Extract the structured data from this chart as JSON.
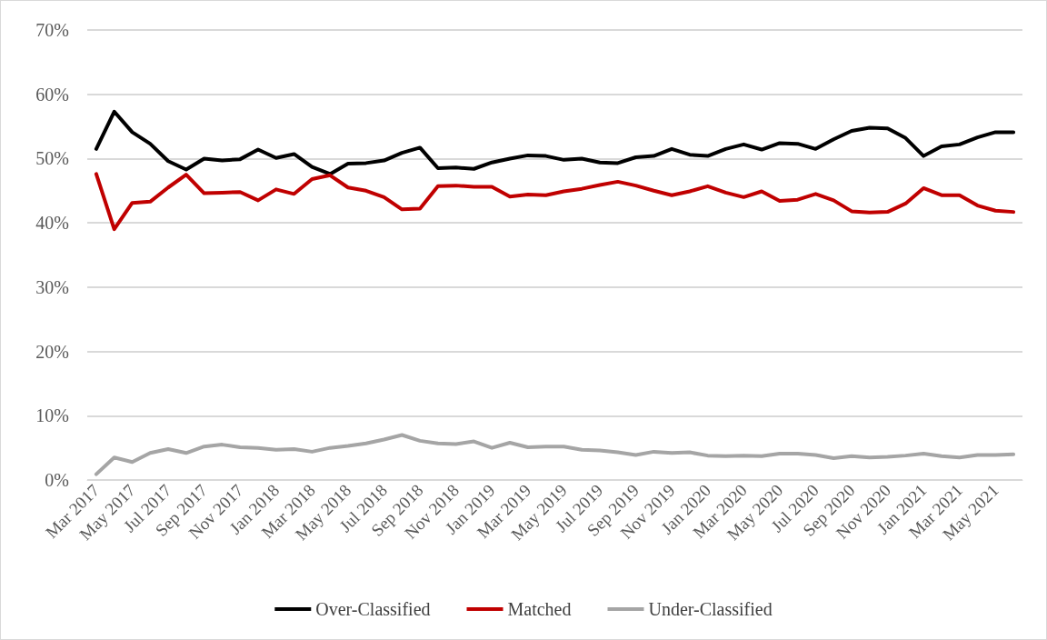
{
  "chart_data": {
    "type": "line",
    "categories": [
      "Mar 2017",
      null,
      "May 2017",
      null,
      "Jul 2017",
      null,
      "Sep 2017",
      null,
      "Nov 2017",
      null,
      "Jan 2018",
      null,
      "Mar 2018",
      null,
      "May 2018",
      null,
      "Jul 2018",
      null,
      "Sep 2018",
      null,
      "Nov 2018",
      null,
      "Jan 2019",
      null,
      "Mar 2019",
      null,
      "May 2019",
      null,
      "Jul 2019",
      null,
      "Sep 2019",
      null,
      "Nov 2019",
      null,
      "Jan 2020",
      null,
      "Mar 2020",
      null,
      "May 2020",
      null,
      "Jul 2020",
      null,
      "Sep 2020",
      null,
      "Nov 2020",
      null,
      "Jan 2021",
      null,
      "Mar 2021",
      null,
      "May 2021",
      null
    ],
    "series": [
      {
        "name": "Over-Classified",
        "color": "#000000",
        "values": [
          51.5,
          57.3,
          54.1,
          52.3,
          49.6,
          48.3,
          50.0,
          49.7,
          49.9,
          51.4,
          50.1,
          50.7,
          48.7,
          47.6,
          49.2,
          49.3,
          49.7,
          50.9,
          51.7,
          48.5,
          48.6,
          48.4,
          49.4,
          50.0,
          50.5,
          50.4,
          49.8,
          50.0,
          49.4,
          49.3,
          50.2,
          50.4,
          51.5,
          50.6,
          50.4,
          51.5,
          52.2,
          51.4,
          52.4,
          52.3,
          51.5,
          53.0,
          54.3,
          54.8,
          54.7,
          53.2,
          50.4,
          51.9,
          52.2,
          53.3,
          54.1,
          54.1
        ]
      },
      {
        "name": "Matched",
        "color": "#c00000",
        "values": [
          47.6,
          39.0,
          43.1,
          43.3,
          45.5,
          47.5,
          44.6,
          44.7,
          44.8,
          43.5,
          45.2,
          44.5,
          46.8,
          47.4,
          45.5,
          45.0,
          44.0,
          42.1,
          42.2,
          45.7,
          45.8,
          45.6,
          45.6,
          44.1,
          44.4,
          44.3,
          44.9,
          45.3,
          45.9,
          46.4,
          45.8,
          45.0,
          44.3,
          44.9,
          45.7,
          44.7,
          44.0,
          44.9,
          43.4,
          43.6,
          44.5,
          43.5,
          41.8,
          41.6,
          41.7,
          43.0,
          45.4,
          44.3,
          44.3,
          42.7,
          41.9,
          41.7
        ]
      },
      {
        "name": "Under-Classified",
        "color": "#a5a5a5",
        "values": [
          0.9,
          3.5,
          2.8,
          4.2,
          4.8,
          4.2,
          5.2,
          5.5,
          5.1,
          5.0,
          4.7,
          4.8,
          4.4,
          5.0,
          5.3,
          5.7,
          6.3,
          7.0,
          6.1,
          5.7,
          5.6,
          6.0,
          5.0,
          5.8,
          5.1,
          5.2,
          5.2,
          4.7,
          4.6,
          4.3,
          3.9,
          4.4,
          4.2,
          4.3,
          3.8,
          3.7,
          3.8,
          3.7,
          4.1,
          4.1,
          3.9,
          3.4,
          3.7,
          3.5,
          3.6,
          3.8,
          4.1,
          3.7,
          3.5,
          3.9,
          3.9,
          4.0
        ]
      }
    ],
    "ylim": [
      0,
      70
    ],
    "yticks": [
      {
        "value": 0,
        "label": "0%"
      },
      {
        "value": 10,
        "label": "10%"
      },
      {
        "value": 20,
        "label": "20%"
      },
      {
        "value": 30,
        "label": "30%"
      },
      {
        "value": 40,
        "label": "40%"
      },
      {
        "value": 50,
        "label": "50%"
      },
      {
        "value": 60,
        "label": "60%"
      },
      {
        "value": 70,
        "label": "70%"
      }
    ],
    "grid": "y",
    "legend": "bottom",
    "marker": "none",
    "line_style": "solid"
  }
}
